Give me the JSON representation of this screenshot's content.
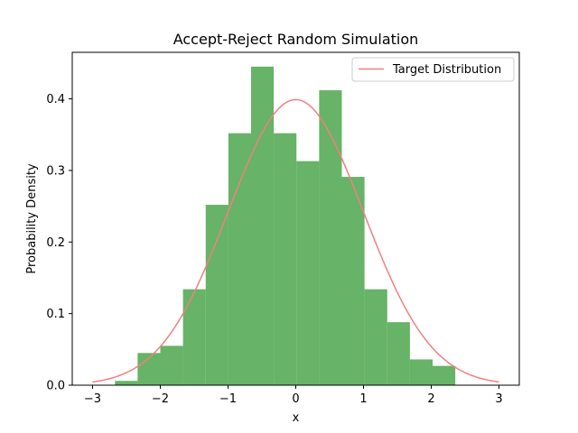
{
  "chart_data": {
    "type": "bar",
    "title": "Accept-Reject Random Simulation",
    "xlabel": "x",
    "ylabel": "Probability Density",
    "xlim": [
      -3.3,
      3.3
    ],
    "ylim": [
      0,
      0.465
    ],
    "xticks": [
      -3,
      -2,
      -1,
      0,
      1,
      2,
      3
    ],
    "xtick_labels": [
      "−3",
      "−2",
      "−1",
      "0",
      "1",
      "2",
      "3"
    ],
    "yticks": [
      0.0,
      0.1,
      0.2,
      0.3,
      0.4
    ],
    "ytick_labels": [
      "0.0",
      "0.1",
      "0.2",
      "0.3",
      "0.4"
    ],
    "grid": false,
    "legend": {
      "placement": "upper right",
      "entries": [
        "Target Distribution"
      ]
    },
    "histogram": {
      "color": "#4ca64c",
      "bin_edges": [
        -2.67,
        -2.335,
        -2.0,
        -1.665,
        -1.33,
        -0.995,
        -0.66,
        -0.325,
        0.01,
        0.345,
        0.68,
        1.015,
        1.35,
        1.685,
        2.02,
        2.355
      ],
      "values": [
        0.006,
        0.045,
        0.055,
        0.134,
        0.252,
        0.352,
        0.445,
        0.352,
        0.313,
        0.412,
        0.291,
        0.134,
        0.088,
        0.036,
        0.027
      ]
    },
    "series": [
      {
        "name": "Target Distribution",
        "type": "line",
        "color": "#f08080",
        "function": "standard-normal-pdf",
        "x_range": [
          -3,
          3
        ]
      }
    ]
  }
}
